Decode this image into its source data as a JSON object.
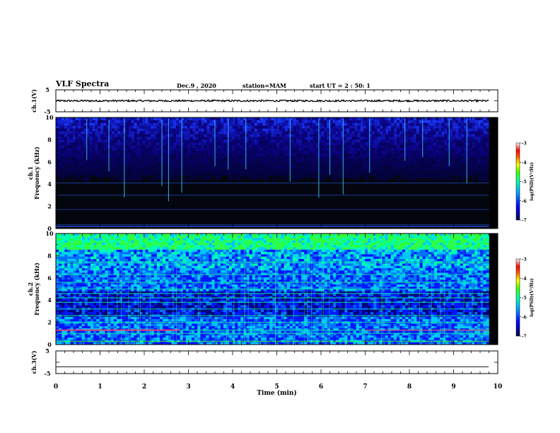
{
  "header": {
    "title": "VLF Spectra",
    "date": "Dec.9 , 2020",
    "station": "station=MAM",
    "start": "start UT = 2 : 50: 1"
  },
  "colors": {
    "background": "#ffffff",
    "spec_bg": "#0a1428",
    "colormap": [
      "#00007a",
      "#0000ff",
      "#0080ff",
      "#00e0ff",
      "#00ff80",
      "#80ff00",
      "#ffff00",
      "#ff8000",
      "#ff0000",
      "#ffffff"
    ]
  },
  "chart_data": [
    {
      "type": "line",
      "panel": "ch1-waveform",
      "ylabel": "ch.1(V)",
      "ylim": [
        -5,
        5
      ],
      "yticks": [
        "5",
        "-5"
      ],
      "xlim": [
        0,
        10
      ],
      "trace_level": 0,
      "trace_amplitude": 0.4,
      "end_min": 9.8
    },
    {
      "type": "heatmap",
      "panel": "ch1-spectrogram",
      "ylabel": "ch.1\nFrequency (kHz)",
      "ylim": [
        0,
        10
      ],
      "yticks": [
        "0",
        "2",
        "4",
        "6",
        "8",
        "10"
      ],
      "xlim": [
        0,
        10
      ],
      "end_min": 9.8,
      "colorbar": {
        "label": "log(PSD)(V²/Hz)",
        "range": [
          -7,
          -3
        ],
        "ticks": [
          "-3",
          "-4",
          "-5",
          "-6",
          "-7"
        ]
      },
      "spikes_min": [
        0.7,
        1.2,
        1.55,
        2.4,
        2.55,
        2.85,
        3.6,
        3.9,
        4.3,
        5.3,
        5.95,
        6.2,
        6.5,
        7.1,
        7.9,
        8.3,
        8.9,
        9.3
      ]
    },
    {
      "type": "heatmap",
      "panel": "ch2-spectrogram",
      "ylabel": "ch.2\nFrequency (kHz)",
      "ylim": [
        0,
        10
      ],
      "yticks": [
        "0",
        "2",
        "4",
        "6",
        "8",
        "10"
      ],
      "xlim": [
        0,
        10
      ],
      "end_min": 9.8,
      "colorbar": {
        "label": "log(PSD)(V²/Hz)",
        "range": [
          -7,
          -3
        ],
        "ticks": [
          "-3",
          "-4",
          "-5",
          "-6",
          "-7"
        ]
      },
      "bands_khz": [
        0.3,
        1.0,
        1.3,
        2.0,
        2.6,
        3.2,
        3.8,
        4.2,
        4.6,
        5.0,
        5.6,
        6.3,
        7.4
      ]
    },
    {
      "type": "line",
      "panel": "ch3-waveform",
      "ylabel": "ch.3(V)",
      "ylim": [
        -5,
        5
      ],
      "yticks": [
        "5",
        "-5"
      ],
      "xlim": [
        0,
        10
      ],
      "trace_level": -2,
      "trace_amplitude": 0,
      "end_min": 9.8,
      "xlabel": "Time (min)",
      "xticks": [
        "0",
        "1",
        "2",
        "3",
        "4",
        "5",
        "6",
        "7",
        "8",
        "9",
        "10"
      ]
    }
  ]
}
